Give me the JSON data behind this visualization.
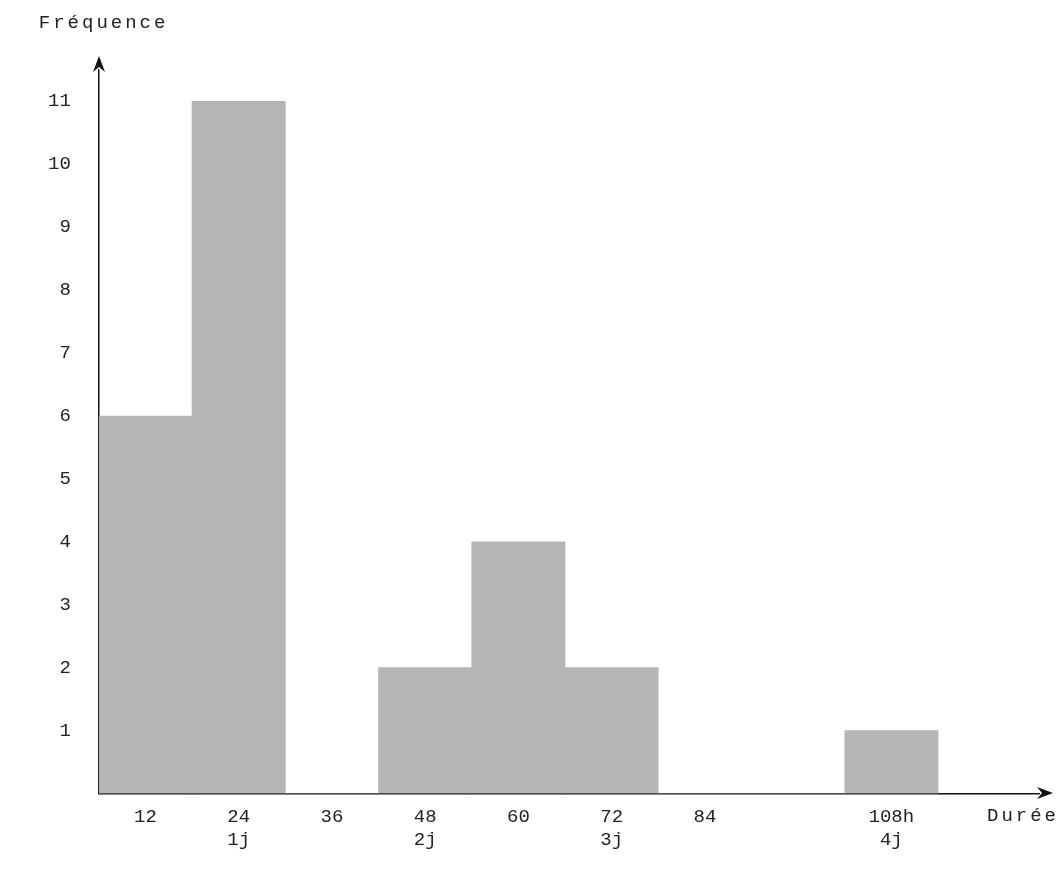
{
  "chart_data": {
    "type": "histogram",
    "xlabel": "Durée",
    "ylabel": "Fréquence",
    "bins": [
      6,
      18,
      30,
      42,
      54,
      66,
      78,
      90,
      102,
      114
    ],
    "values": [
      6,
      11,
      0,
      2,
      4,
      2,
      0,
      0,
      1
    ],
    "color": "#b5b5b5",
    "xlim": [
      6,
      127
    ],
    "xticks": [
      12,
      {
        "value": 24,
        "label": "24\n1j"
      },
      36,
      {
        "value": 48,
        "label": "48\n2j"
      },
      60,
      {
        "value": 72,
        "label": "72\n3j"
      },
      84,
      {
        "value": 108,
        "label": "108h\n4j"
      }
    ],
    "ylim": [
      0,
      11.5
    ],
    "yticks": [
      1,
      2,
      3,
      4,
      5,
      6,
      7,
      8,
      9,
      10,
      11
    ],
    "grid": false,
    "legend": false
  }
}
